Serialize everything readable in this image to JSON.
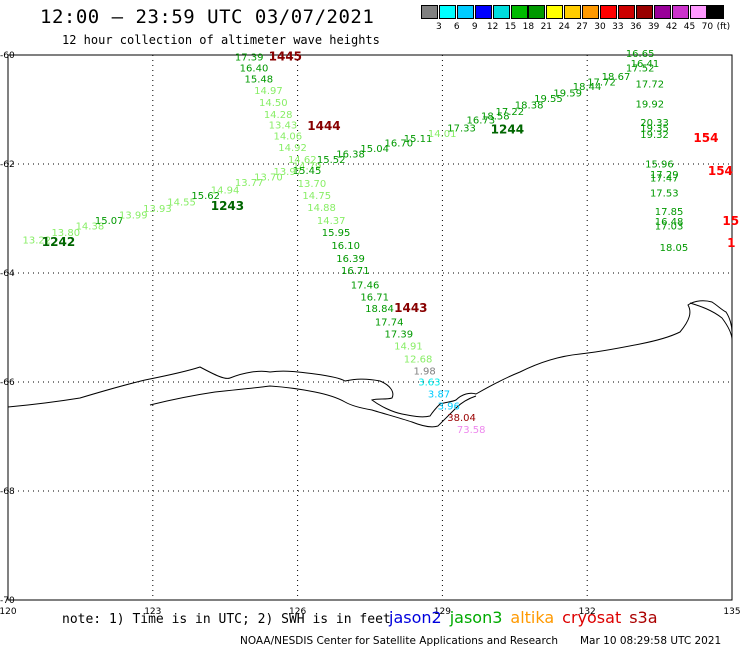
{
  "header": {
    "title": "12:00 – 23:59 UTC 03/07/2021",
    "subtitle": "12 hour collection of altimeter wave heights"
  },
  "legend": {
    "unit": "(ft)",
    "colors": [
      "#808080",
      "#00ffff",
      "#00ccff",
      "#0000ff",
      "#00dddd",
      "#00bb00",
      "#009900",
      "#ffff00",
      "#ffcc00",
      "#ff9900",
      "#ff0000",
      "#cc0000",
      "#990000",
      "#990099",
      "#cc33cc",
      "#ff99ff",
      "#000000"
    ],
    "labels": [
      "3",
      "6",
      "9",
      "12",
      "15",
      "18",
      "21",
      "24",
      "27",
      "30",
      "33",
      "36",
      "39",
      "42",
      "45",
      "70"
    ]
  },
  "axes": {
    "lat_labels": [
      "-60",
      "-62",
      "-64",
      "-66",
      "-68",
      "-70"
    ],
    "lon_labels": [
      "120",
      "123",
      "126",
      "129",
      "132",
      "135"
    ]
  },
  "map_data": {
    "lon_range": [
      120,
      135
    ],
    "lat_range": [
      -70,
      -60
    ],
    "tracks": [
      {
        "id": "1242-1244",
        "points": [
          {
            "v": "13.22",
            "lon": 120.3,
            "lat": -63.46,
            "c": "#88ee66"
          },
          {
            "v": "13.80",
            "lon": 120.9,
            "lat": -63.32,
            "c": "#88ee66"
          },
          {
            "v": "14.38",
            "lon": 121.4,
            "lat": -63.2,
            "c": "#88ee66"
          },
          {
            "v": "15.07",
            "lon": 121.8,
            "lat": -63.1,
            "c": "#009900"
          },
          {
            "v": "13.99",
            "lon": 122.3,
            "lat": -63.0,
            "c": "#88ee66"
          },
          {
            "v": "13.93",
            "lon": 122.8,
            "lat": -62.88,
            "c": "#88ee66"
          },
          {
            "v": "14.55",
            "lon": 123.3,
            "lat": -62.76,
            "c": "#88ee66"
          },
          {
            "v": "15.62",
            "lon": 123.8,
            "lat": -62.64,
            "c": "#009900"
          },
          {
            "v": "14.94",
            "lon": 124.2,
            "lat": -62.54,
            "c": "#88ee66"
          },
          {
            "v": "13.77",
            "lon": 124.7,
            "lat": -62.4,
            "c": "#88ee66"
          },
          {
            "v": "13.70",
            "lon": 125.1,
            "lat": -62.3,
            "c": "#88ee66"
          },
          {
            "v": "13.97",
            "lon": 125.5,
            "lat": -62.2,
            "c": "#88ee66"
          },
          {
            "v": "14.79",
            "lon": 125.9,
            "lat": -62.1,
            "c": "#88ee66"
          },
          {
            "v": "15.52",
            "lon": 126.4,
            "lat": -61.98,
            "c": "#009900"
          },
          {
            "v": "16.38",
            "lon": 126.8,
            "lat": -61.88,
            "c": "#009900"
          },
          {
            "v": "15.04",
            "lon": 127.3,
            "lat": -61.78,
            "c": "#009900"
          },
          {
            "v": "16.70",
            "lon": 127.8,
            "lat": -61.68,
            "c": "#009900"
          },
          {
            "v": "15.11",
            "lon": 128.2,
            "lat": -61.6,
            "c": "#009900"
          },
          {
            "v": "14.01",
            "lon": 128.7,
            "lat": -61.5,
            "c": "#88ee66"
          },
          {
            "v": "17.33",
            "lon": 129.1,
            "lat": -61.4,
            "c": "#009900"
          },
          {
            "v": "16.73",
            "lon": 129.5,
            "lat": -61.26,
            "c": "#009900"
          },
          {
            "v": "18.58",
            "lon": 129.8,
            "lat": -61.18,
            "c": "#009900"
          },
          {
            "v": "17.22",
            "lon": 130.1,
            "lat": -61.1,
            "c": "#009900"
          },
          {
            "v": "18.38",
            "lon": 130.5,
            "lat": -60.98,
            "c": "#009900"
          },
          {
            "v": "19.55",
            "lon": 130.9,
            "lat": -60.86,
            "c": "#009900"
          },
          {
            "v": "19.59",
            "lon": 131.3,
            "lat": -60.76,
            "c": "#009900"
          },
          {
            "v": "18.44",
            "lon": 131.7,
            "lat": -60.64,
            "c": "#009900"
          },
          {
            "v": "17.72",
            "lon": 132.0,
            "lat": -60.56,
            "c": "#009900"
          },
          {
            "v": "18.67",
            "lon": 132.3,
            "lat": -60.46,
            "c": "#009900"
          },
          {
            "v": "17.52",
            "lon": 132.8,
            "lat": -60.3,
            "c": "#009900"
          }
        ]
      },
      {
        "id": "1445-1443",
        "points": [
          {
            "v": "17.39",
            "lon": 124.7,
            "lat": -60.1,
            "c": "#009900"
          },
          {
            "v": "16.40",
            "lon": 124.8,
            "lat": -60.3,
            "c": "#009900"
          },
          {
            "v": "15.48",
            "lon": 124.9,
            "lat": -60.5,
            "c": "#009900"
          },
          {
            "v": "14.97",
            "lon": 125.1,
            "lat": -60.72,
            "c": "#88ee66"
          },
          {
            "v": "14.50",
            "lon": 125.2,
            "lat": -60.94,
            "c": "#88ee66"
          },
          {
            "v": "14.28",
            "lon": 125.3,
            "lat": -61.16,
            "c": "#88ee66"
          },
          {
            "v": "13.43",
            "lon": 125.4,
            "lat": -61.35,
            "c": "#88ee66"
          },
          {
            "v": "14.06",
            "lon": 125.5,
            "lat": -61.55,
            "c": "#88ee66"
          },
          {
            "v": "14.92",
            "lon": 125.6,
            "lat": -61.76,
            "c": "#88ee66"
          },
          {
            "v": "14.62",
            "lon": 125.8,
            "lat": -61.98,
            "c": "#88ee66"
          },
          {
            "v": "15.45",
            "lon": 125.9,
            "lat": -62.18,
            "c": "#009900"
          },
          {
            "v": "13.70",
            "lon": 126.0,
            "lat": -62.42,
            "c": "#88ee66"
          },
          {
            "v": "14.75",
            "lon": 126.1,
            "lat": -62.64,
            "c": "#88ee66"
          },
          {
            "v": "14.88",
            "lon": 126.2,
            "lat": -62.86,
            "c": "#88ee66"
          },
          {
            "v": "14.37",
            "lon": 126.4,
            "lat": -63.1,
            "c": "#88ee66"
          },
          {
            "v": "15.95",
            "lon": 126.5,
            "lat": -63.32,
            "c": "#009900"
          },
          {
            "v": "16.10",
            "lon": 126.7,
            "lat": -63.56,
            "c": "#009900"
          },
          {
            "v": "16.39",
            "lon": 126.8,
            "lat": -63.8,
            "c": "#009900"
          },
          {
            "v": "16.71",
            "lon": 126.9,
            "lat": -64.02,
            "c": "#009900"
          },
          {
            "v": "17.46",
            "lon": 127.1,
            "lat": -64.28,
            "c": "#009900"
          },
          {
            "v": "16.71",
            "lon": 127.3,
            "lat": -64.5,
            "c": "#009900"
          },
          {
            "v": "18.84",
            "lon": 127.4,
            "lat": -64.72,
            "c": "#009900"
          },
          {
            "v": "17.74",
            "lon": 127.6,
            "lat": -64.96,
            "c": "#009900"
          },
          {
            "v": "17.39",
            "lon": 127.8,
            "lat": -65.18,
            "c": "#009900"
          },
          {
            "v": "14.91",
            "lon": 128.0,
            "lat": -65.4,
            "c": "#88ee66"
          },
          {
            "v": "12.68",
            "lon": 128.2,
            "lat": -65.64,
            "c": "#88ee66"
          }
        ]
      },
      {
        "id": "1443-south",
        "points": [
          {
            "v": "1.98",
            "lon": 128.4,
            "lat": -65.86,
            "c": "#808080"
          },
          {
            "v": "3.63",
            "lon": 128.5,
            "lat": -66.06,
            "c": "#00eeee"
          },
          {
            "v": "3.87",
            "lon": 128.7,
            "lat": -66.28,
            "c": "#00ccff"
          },
          {
            "v": "3.96",
            "lon": 128.9,
            "lat": -66.5,
            "c": "#00ccff"
          },
          {
            "v": "38.04",
            "lon": 129.1,
            "lat": -66.72,
            "c": "#990000"
          },
          {
            "v": "73.58",
            "lon": 129.3,
            "lat": -66.94,
            "c": "#ee88ee"
          }
        ]
      },
      {
        "id": "east",
        "points": [
          {
            "v": "16.65",
            "lon": 132.8,
            "lat": -60.04,
            "c": "#009900"
          },
          {
            "v": "16.41",
            "lon": 132.9,
            "lat": -60.22,
            "c": "#009900"
          },
          {
            "v": "17.72",
            "lon": 133.0,
            "lat": -60.6,
            "c": "#009900"
          },
          {
            "v": "19.92",
            "lon": 133.0,
            "lat": -60.96,
            "c": "#009900"
          },
          {
            "v": "20.33",
            "lon": 133.1,
            "lat": -61.3,
            "c": "#009900"
          },
          {
            "v": "19.35",
            "lon": 133.1,
            "lat": -61.4,
            "c": "#009900"
          },
          {
            "v": "19.32",
            "lon": 133.1,
            "lat": -61.52,
            "c": "#009900"
          },
          {
            "v": "15.96",
            "lon": 133.2,
            "lat": -62.06,
            "c": "#009900"
          },
          {
            "v": "17.29",
            "lon": 133.3,
            "lat": -62.26,
            "c": "#009900"
          },
          {
            "v": "17.47",
            "lon": 133.3,
            "lat": -62.32,
            "c": "#009900"
          },
          {
            "v": "17.53",
            "lon": 133.3,
            "lat": -62.6,
            "c": "#009900"
          },
          {
            "v": "17.85",
            "lon": 133.4,
            "lat": -62.94,
            "c": "#009900"
          },
          {
            "v": "16.48",
            "lon": 133.4,
            "lat": -63.12,
            "c": "#009900"
          },
          {
            "v": "17.03",
            "lon": 133.4,
            "lat": -63.2,
            "c": "#009900"
          },
          {
            "v": "18.05",
            "lon": 133.5,
            "lat": -63.6,
            "c": "#009900"
          }
        ]
      }
    ],
    "time_labels": [
      {
        "t": "1242",
        "lon": 120.7,
        "lat": -63.5,
        "c": "#006600"
      },
      {
        "t": "1243",
        "lon": 124.2,
        "lat": -62.84,
        "c": "#006600"
      },
      {
        "t": "1244",
        "lon": 130.0,
        "lat": -61.44,
        "c": "#006600"
      },
      {
        "t": "1445",
        "lon": 125.4,
        "lat": -60.1,
        "c": "#880000"
      },
      {
        "t": "1444",
        "lon": 126.2,
        "lat": -61.38,
        "c": "#880000"
      },
      {
        "t": "1443",
        "lon": 128.0,
        "lat": -64.72,
        "c": "#880000"
      },
      {
        "t": "154",
        "lon": 134.2,
        "lat": -61.6,
        "c": "#ff0000"
      },
      {
        "t": "154",
        "lon": 134.5,
        "lat": -62.2,
        "c": "#ff0000"
      },
      {
        "t": "15",
        "lon": 134.8,
        "lat": -63.12,
        "c": "#ff0000"
      },
      {
        "t": "1",
        "lon": 134.9,
        "lat": -63.52,
        "c": "#ff0000"
      }
    ]
  },
  "footer": {
    "note": "note: 1) Time is in UTC; 2) SWH is in feet",
    "satellites": [
      {
        "name": "jason2",
        "color": "#0000dd"
      },
      {
        "name": "jason3",
        "color": "#00aa00"
      },
      {
        "name": "altika",
        "color": "#ff9900"
      },
      {
        "name": "cryosat",
        "color": "#dd0000"
      },
      {
        "name": "s3a",
        "color": "#aa0000"
      }
    ],
    "credit": "NOAA/NESDIS Center for Satellite Applications and Research",
    "timestamp": "Mar 10 08:29:58 UTC 2021"
  }
}
